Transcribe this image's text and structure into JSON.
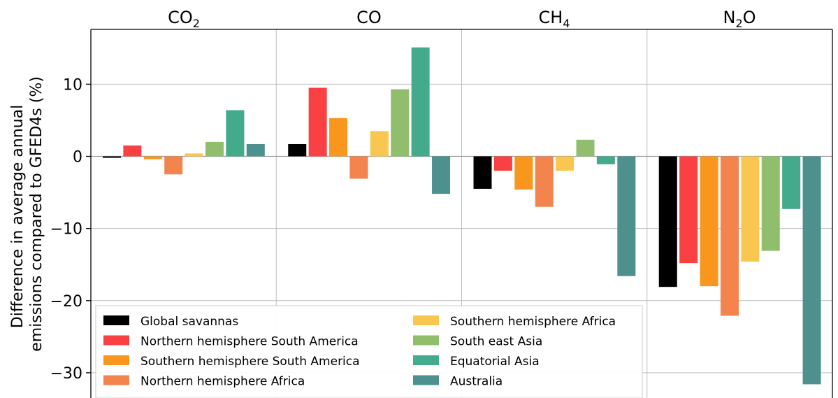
{
  "chart_data": {
    "type": "bar",
    "panels": [
      {
        "title": "CO",
        "subscript": "2"
      },
      {
        "title": "CO",
        "subscript": ""
      },
      {
        "title": "CH",
        "subscript": "4"
      },
      {
        "title": "N",
        "subscript": "2",
        "suffix": "O"
      }
    ],
    "ylabel_line1": "Difference in average annual",
    "ylabel_line2": "emissions compared to GFED4s (%)",
    "yticks": [
      10,
      0,
      -10,
      -20,
      -30
    ],
    "ytick_labels": [
      "10",
      "0",
      "−10",
      "−20",
      "−30"
    ],
    "ylim": [
      -33.5,
      17.6
    ],
    "grid": true,
    "legend_position": "lower-left",
    "series": [
      {
        "name": "Global savannas",
        "color": "#000000",
        "values": [
          -0.2,
          1.7,
          -4.5,
          -18.1
        ]
      },
      {
        "name": "Northern hemisphere South America",
        "color": "#f94144",
        "values": [
          1.5,
          9.5,
          -2.0,
          -14.8
        ]
      },
      {
        "name": "Southern hemisphere South America",
        "color": "#f8961e",
        "values": [
          -0.4,
          5.3,
          -4.6,
          -18.0
        ]
      },
      {
        "name": "Northern hemisphere Africa",
        "color": "#f3844e",
        "values": [
          -2.5,
          -3.1,
          -7.0,
          -22.1
        ]
      },
      {
        "name": "Southern hemisphere Africa",
        "color": "#f9c74f",
        "values": [
          0.4,
          3.5,
          -2.0,
          -14.6
        ]
      },
      {
        "name": "South east Asia",
        "color": "#90be6d",
        "values": [
          2.0,
          9.3,
          2.3,
          -13.1
        ]
      },
      {
        "name": "Equatorial Asia",
        "color": "#43aa8b",
        "values": [
          6.4,
          15.1,
          -1.1,
          -7.3
        ]
      },
      {
        "name": "Australia",
        "color": "#4d908e",
        "values": [
          1.7,
          -5.2,
          -16.6,
          -31.6
        ]
      }
    ]
  }
}
